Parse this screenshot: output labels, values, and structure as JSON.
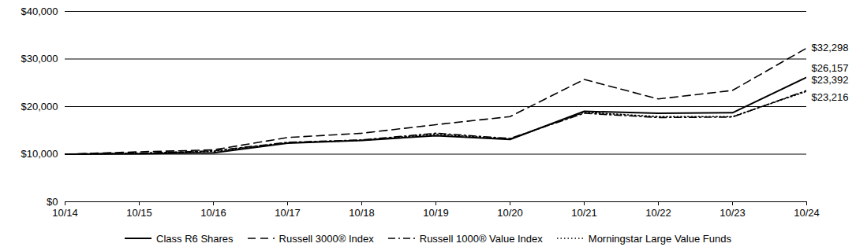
{
  "chart_data": {
    "type": "line",
    "x": [
      "10/14",
      "10/15",
      "10/16",
      "10/17",
      "10/18",
      "10/19",
      "10/20",
      "10/21",
      "10/22",
      "10/23",
      "10/24"
    ],
    "series": [
      {
        "name": "Class R6 Shares",
        "color": "#000000",
        "line_style": "solid",
        "values": [
          10000,
          10100,
          10300,
          12300,
          12900,
          13900,
          13100,
          19000,
          18600,
          18700,
          26157
        ],
        "value_labels": [
          null,
          null,
          null,
          null,
          null,
          null,
          null,
          null,
          null,
          null,
          "$26,157"
        ]
      },
      {
        "name": "Russell 3000® Index",
        "color": "#000000",
        "line_style": "dashed",
        "values": [
          10000,
          10500,
          10900,
          13500,
          14400,
          16200,
          17900,
          25700,
          21600,
          23400,
          32298
        ],
        "value_labels": [
          null,
          null,
          null,
          null,
          null,
          null,
          null,
          null,
          null,
          null,
          "$32,298"
        ]
      },
      {
        "name": "Russell 1000® Value Index",
        "color": "#000000",
        "line_style": "dashdot",
        "values": [
          10000,
          10200,
          10700,
          12500,
          13000,
          14400,
          13300,
          18600,
          17700,
          17800,
          23392
        ],
        "value_labels": [
          null,
          null,
          null,
          null,
          null,
          null,
          null,
          null,
          null,
          null,
          "$23,392"
        ]
      },
      {
        "name": "Morningstar Large Value Funds",
        "color": "#000000",
        "line_style": "dotted",
        "values": [
          10000,
          10200,
          10600,
          12400,
          12900,
          14200,
          13200,
          18800,
          17900,
          17900,
          23216
        ],
        "value_labels": [
          null,
          null,
          null,
          null,
          null,
          null,
          null,
          null,
          null,
          null,
          "$23,216"
        ]
      }
    ],
    "ylim": [
      0,
      40000
    ],
    "yticks": [
      {
        "value": 0,
        "label": "$0"
      },
      {
        "value": 10000,
        "label": "$10,000"
      },
      {
        "value": 20000,
        "label": "$20,000"
      },
      {
        "value": 30000,
        "label": "$30,000"
      },
      {
        "value": 40000,
        "label": "$40,000"
      }
    ],
    "grid": true,
    "data_labels": true,
    "legend": "bottom"
  }
}
